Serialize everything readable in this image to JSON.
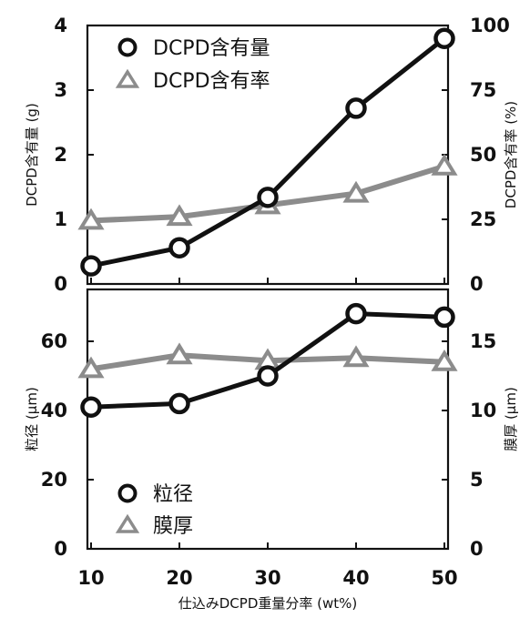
{
  "chart_data": [
    {
      "type": "line",
      "x": [
        10,
        20,
        30,
        40,
        50
      ],
      "ylabel": "DCPD含有量 (g)",
      "y2label": "DCPD含有率 (%)",
      "ylim": [
        0,
        4
      ],
      "y2lim": [
        0,
        100
      ],
      "yticks": [
        "0",
        "1",
        "2",
        "3",
        "4"
      ],
      "y2ticks": [
        "0",
        "25",
        "50",
        "75",
        "100"
      ],
      "legend_position": "top-left",
      "grid": false,
      "series": [
        {
          "name": "DCPD含有量",
          "axis": "left",
          "marker": "circle",
          "color": "#111111",
          "values": [
            0.28,
            0.56,
            1.34,
            2.72,
            3.8
          ]
        },
        {
          "name": "DCPD含有率",
          "axis": "right",
          "marker": "triangle",
          "color": "#8c8c8c",
          "values": [
            24.5,
            26,
            30.5,
            35,
            45.5
          ]
        }
      ]
    },
    {
      "type": "line",
      "x": [
        10,
        20,
        30,
        40,
        50
      ],
      "xlabel": "仕込みDCPD重量分率 (wt%)",
      "xticks": [
        "10",
        "20",
        "30",
        "40",
        "50"
      ],
      "ylabel": "粒径 (μm)",
      "y2label": "膜厚 (μm)",
      "ylim": [
        0,
        75
      ],
      "y2lim": [
        0,
        18.75
      ],
      "yticks": [
        "0",
        "20",
        "40",
        "60"
      ],
      "y2ticks": [
        "0",
        "5",
        "10",
        "15"
      ],
      "legend_position": "bottom-left",
      "grid": false,
      "series": [
        {
          "name": "粒径",
          "axis": "left",
          "marker": "circle",
          "color": "#111111",
          "values": [
            41,
            42,
            50,
            68,
            67
          ]
        },
        {
          "name": "膜厚",
          "axis": "right",
          "marker": "triangle",
          "color": "#8c8c8c",
          "values": [
            13,
            14,
            13.6,
            13.8,
            13.5
          ]
        }
      ]
    }
  ]
}
